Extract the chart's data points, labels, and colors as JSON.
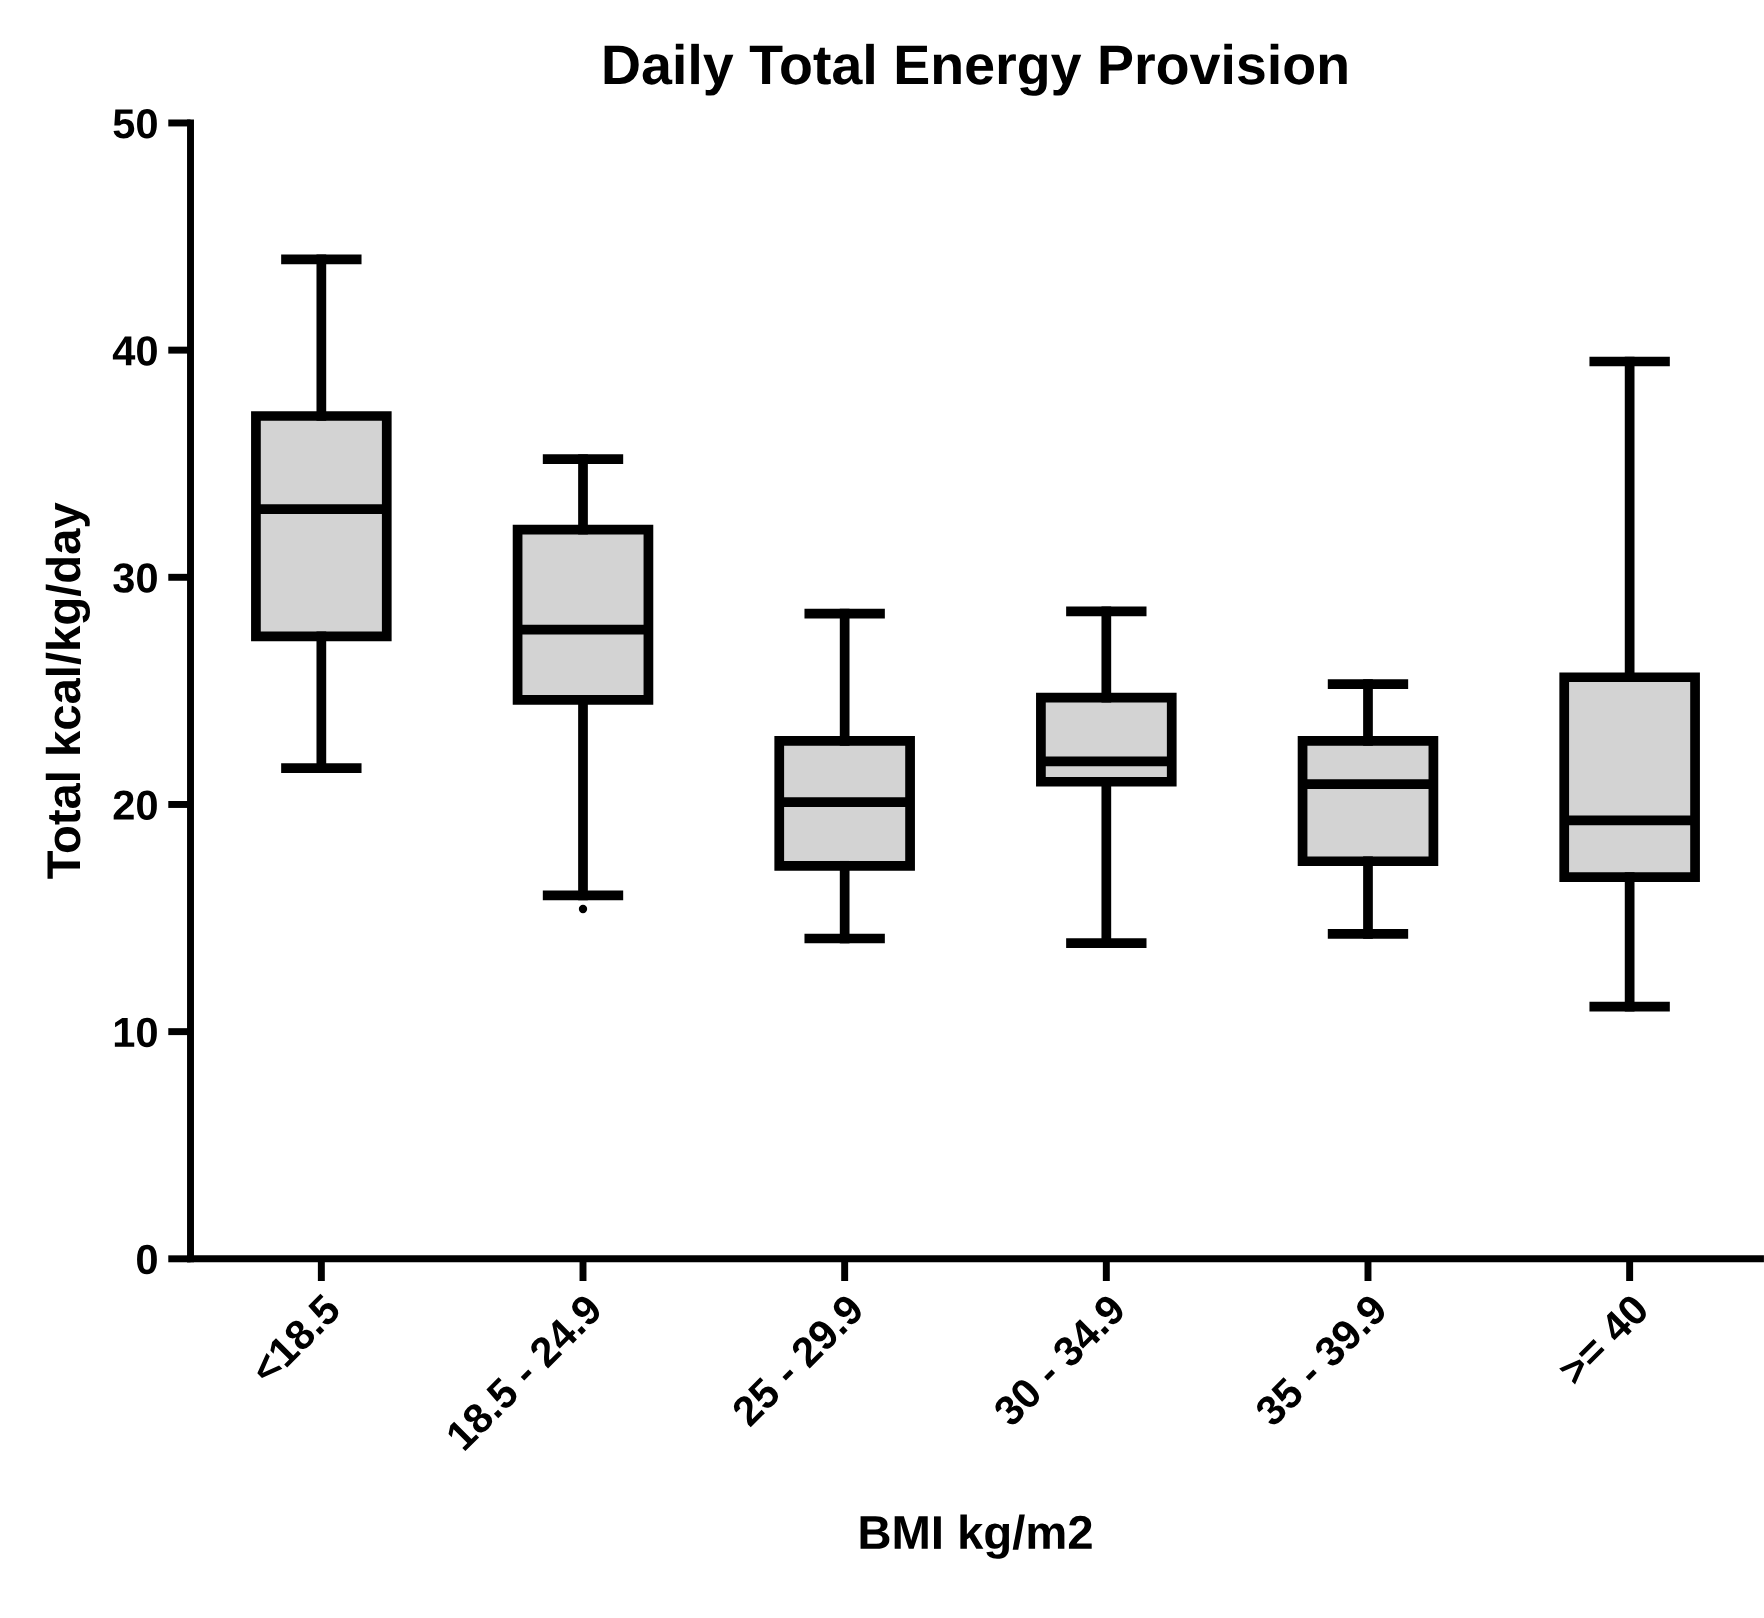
{
  "chart_data": {
    "type": "box",
    "title": "Daily Total Energy Provision",
    "xlabel": "BMI kg/m2",
    "ylabel": "Total kcal/kg/day",
    "categories": [
      "<18.5",
      "18.5 - 24.9",
      "25 - 29.9",
      "30 - 34.9",
      "35 - 39.9",
      ">= 40"
    ],
    "series": [
      {
        "color": "#d3d3d3",
        "boxes": [
          {
            "low": 21.6,
            "q1": 27.4,
            "median": 33.0,
            "q3": 37.1,
            "high": 44.0
          },
          {
            "low": 16.0,
            "q1": 24.6,
            "median": 27.7,
            "q3": 32.1,
            "high": 35.2,
            "outliers": [
              15.4
            ]
          },
          {
            "low": 14.1,
            "q1": 17.3,
            "median": 20.1,
            "q3": 22.8,
            "high": 28.4
          },
          {
            "low": 13.9,
            "q1": 21.0,
            "median": 21.9,
            "q3": 24.7,
            "high": 28.5
          },
          {
            "low": 14.3,
            "q1": 17.5,
            "median": 20.9,
            "q3": 22.8,
            "high": 25.3
          },
          {
            "low": 11.1,
            "q1": 16.8,
            "median": 19.3,
            "q3": 25.6,
            "high": 39.5
          }
        ]
      }
    ],
    "ylim": [
      0,
      50
    ],
    "yticks": [
      0,
      10,
      20,
      30,
      40,
      50
    ],
    "grid": false,
    "legend": false
  }
}
